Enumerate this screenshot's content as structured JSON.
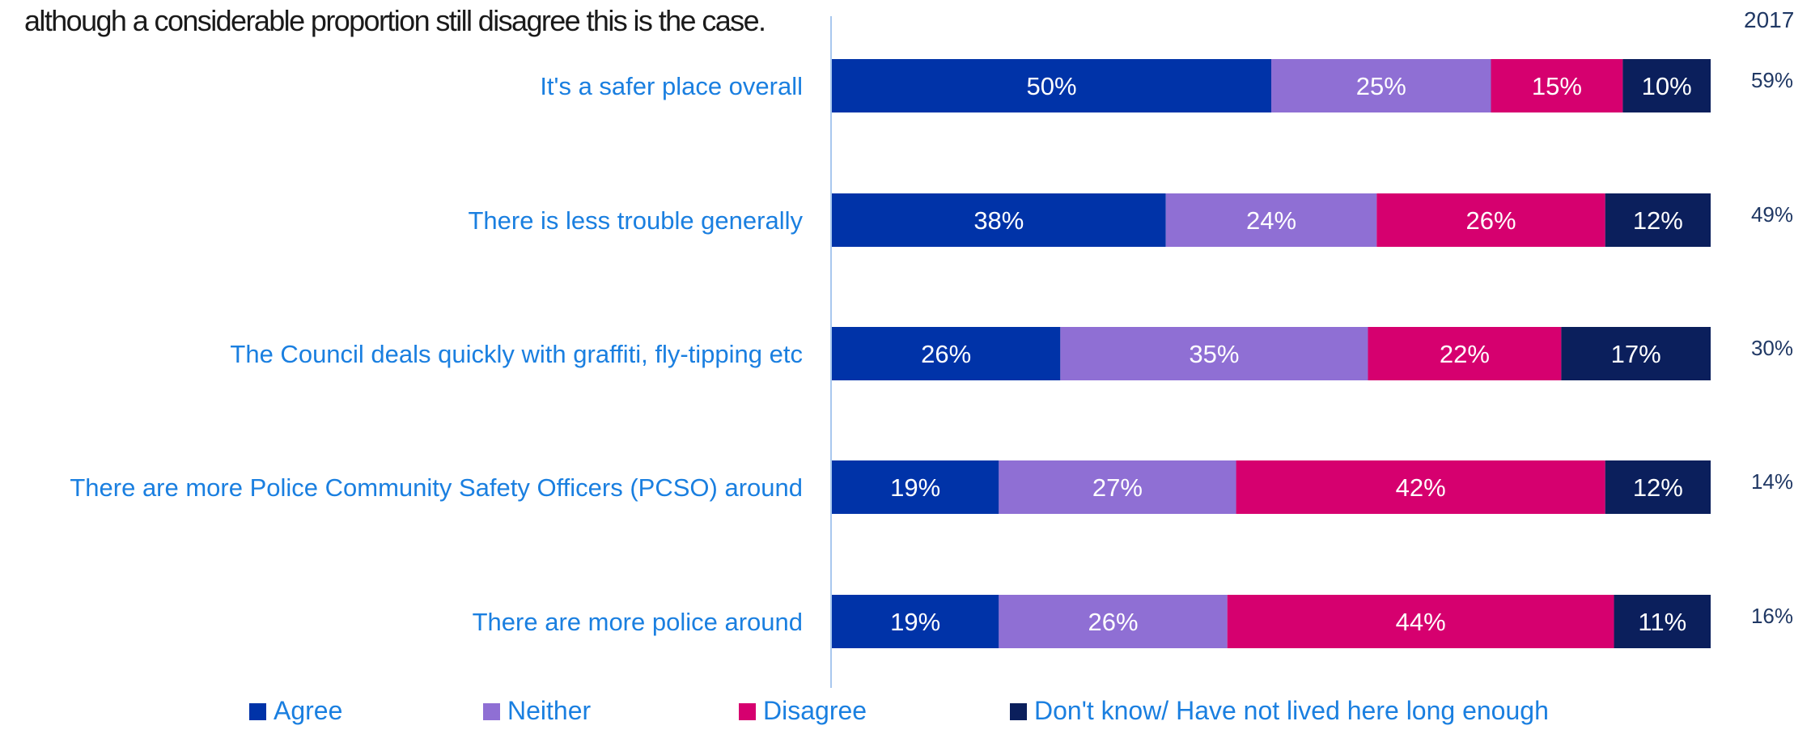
{
  "intro_text": "although a considerable proportion still disagree this is the case.",
  "colors": {
    "agree": "#0033A8",
    "neither": "#8F6FD4",
    "disagree": "#D6006F",
    "dont_know": "#0B1F5C",
    "label_text": "#1A7FE0",
    "axis_line": "#A9C8EE",
    "dark_text": "#1A1A1A",
    "muted_text": "#203864"
  },
  "chart_data": {
    "type": "bar",
    "orientation": "horizontal",
    "stacked": true,
    "value_unit": "%",
    "xlim": [
      0,
      100
    ],
    "categories": [
      "It's a safer place overall",
      "There is less trouble generally",
      "The Council deals quickly with graffiti, fly-tipping etc",
      "There are more Police Community Safety Officers (PCSO) around",
      "There are more police around"
    ],
    "series": [
      {
        "name": "Agree",
        "color": "#0033A8",
        "values": [
          50,
          38,
          26,
          19,
          19
        ]
      },
      {
        "name": "Neither",
        "color": "#8F6FD4",
        "values": [
          25,
          24,
          35,
          27,
          26
        ]
      },
      {
        "name": "Disagree",
        "color": "#D6006F",
        "values": [
          15,
          26,
          22,
          42,
          44
        ]
      },
      {
        "name": "Don't know/ Have not lived here long enough",
        "color": "#0B1F5C",
        "values": [
          10,
          12,
          17,
          12,
          11
        ]
      }
    ],
    "comparison": {
      "label": "2017",
      "values": [
        "59%",
        "49%",
        "30%",
        "14%",
        "16%"
      ]
    },
    "legend_position": "bottom",
    "grid": false
  }
}
